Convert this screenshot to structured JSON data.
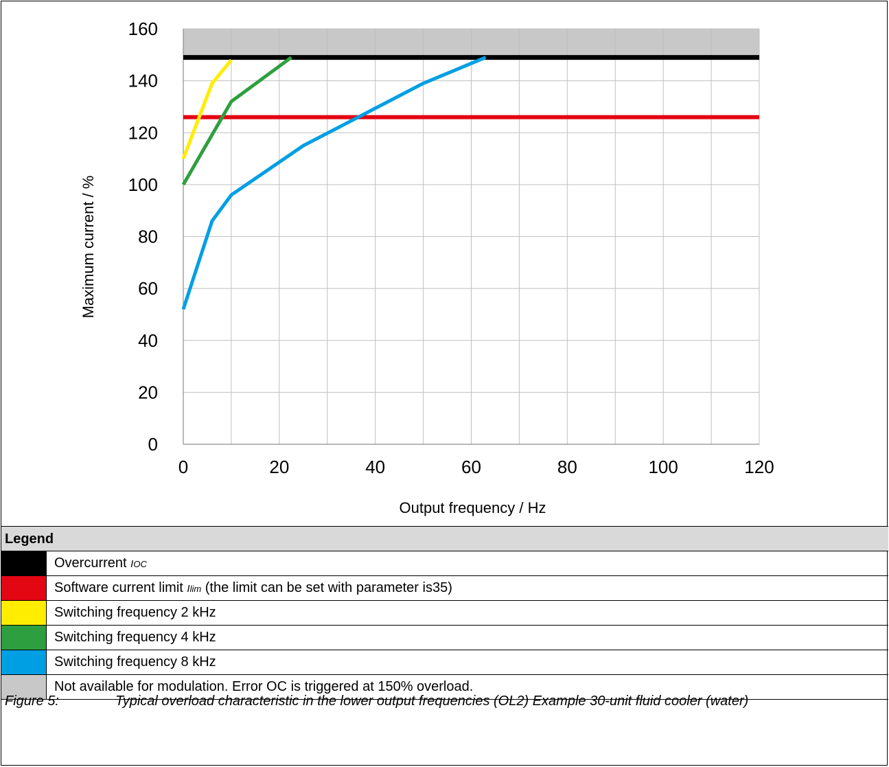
{
  "chart_data": {
    "type": "line",
    "title": "",
    "xlabel": "Output frequency / Hz",
    "ylabel": "Maximum current / %",
    "xlim": [
      0,
      120
    ],
    "ylim": [
      0,
      160
    ],
    "xticks": [
      "0",
      "20",
      "40",
      "60",
      "80",
      "100",
      "120"
    ],
    "yticks": [
      "0",
      "20",
      "40",
      "60",
      "80",
      "100",
      "120",
      "140",
      "160"
    ],
    "grid": true,
    "shaded_region": {
      "y_from": 150,
      "y_to": 160,
      "color": "#c8c8c8"
    },
    "series": [
      {
        "key": "oc",
        "color": "#000000",
        "x": [
          0,
          120
        ],
        "y": [
          149,
          149
        ]
      },
      {
        "key": "lim",
        "color": "#e30613",
        "x": [
          0,
          120
        ],
        "y": [
          126,
          126
        ]
      },
      {
        "key": "sw2",
        "color": "#ffed00",
        "x": [
          0,
          6,
          10
        ],
        "y": [
          110,
          139,
          148
        ]
      },
      {
        "key": "sw4",
        "color": "#2e9f3e",
        "x": [
          0,
          10,
          22.5
        ],
        "y": [
          100,
          132,
          149
        ]
      },
      {
        "key": "sw8",
        "color": "#009fe3",
        "x": [
          0,
          6,
          10,
          25,
          50,
          63
        ],
        "y": [
          52,
          86,
          96,
          115,
          139,
          149
        ]
      }
    ]
  },
  "legend": {
    "title": "Legend",
    "items": [
      {
        "color": "#000000",
        "text": "Overcurrent ",
        "sym": "IOC",
        "rest": ""
      },
      {
        "color": "#e30613",
        "text": "Software current limit ",
        "sym": "Ilim",
        "rest": " (the limit can be set with parameter is35)"
      },
      {
        "color": "#ffed00",
        "text": "Switching frequency 2 kHz",
        "sym": "",
        "rest": ""
      },
      {
        "color": "#2e9f3e",
        "text": "Switching frequency 4 kHz",
        "sym": "",
        "rest": ""
      },
      {
        "color": "#009fe3",
        "text": "Switching frequency 8 kHz",
        "sym": "",
        "rest": ""
      },
      {
        "color": "#c8c8c8",
        "text": "Not available for modulation. Error OC is triggered at 150% overload.",
        "sym": "",
        "rest": ""
      }
    ]
  },
  "caption": {
    "number": "Figure 5:",
    "text": "Typical overload characteristic in the lower output frequencies (OL2) Example 30-unit fluid cooler (water)"
  }
}
